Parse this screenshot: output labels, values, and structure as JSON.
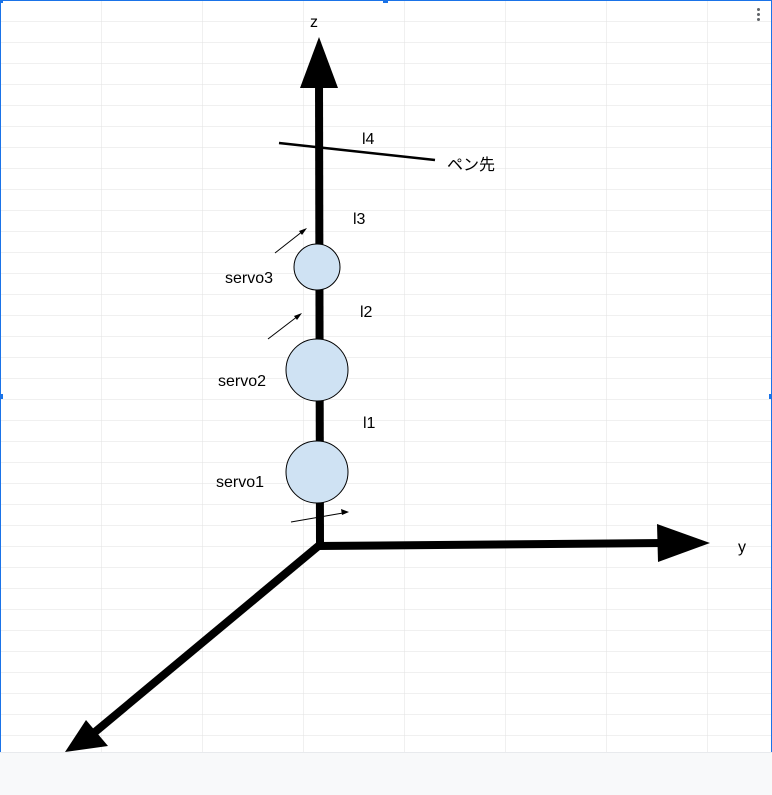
{
  "diagram": {
    "axes": {
      "z_label": "z",
      "y_label": "y"
    },
    "links": {
      "l1": "l1",
      "l2": "l2",
      "l3": "l3",
      "l4": "l4"
    },
    "servos": {
      "servo1": "servo1",
      "servo2": "servo2",
      "servo3": "servo3"
    },
    "pen_tip_label": "ペン先",
    "colors": {
      "servo_fill": "#cfe2f3",
      "axis": "#000000",
      "grid": "#e2e2e2",
      "selection": "#1a73e8"
    }
  }
}
